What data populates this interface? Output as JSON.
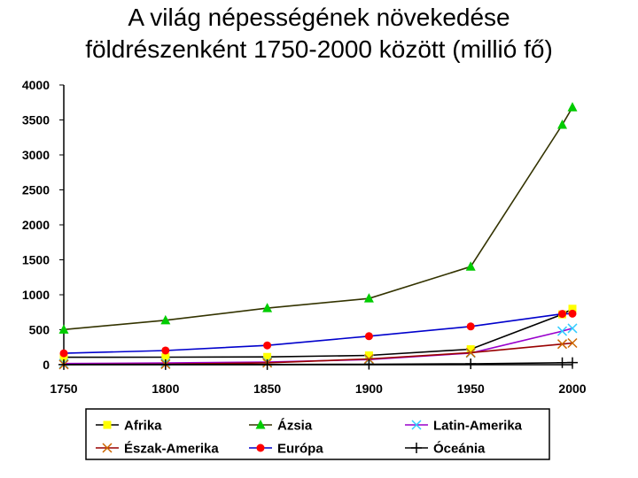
{
  "title_line1": "A világ népességének növekedése",
  "title_line2": "földrészenként 1750-2000 között (millió fő)",
  "chart_data": {
    "type": "line",
    "title": "A világ népességének növekedése földrészenként 1750-2000 között (millió fő)",
    "x_ticks": [
      1750,
      1800,
      1850,
      1900,
      1950,
      2000
    ],
    "y_ticks": [
      0,
      500,
      1000,
      1500,
      2000,
      2500,
      3000,
      3500,
      4000
    ],
    "xlim": [
      1750,
      2000
    ],
    "ylim": [
      0,
      4000
    ],
    "grid": false,
    "legend_position": "bottom",
    "series": [
      {
        "name": "Afrika",
        "color": "#ffff00",
        "marker": "square",
        "line_color": "#000000",
        "x": [
          1750,
          1800,
          1850,
          1900,
          1950,
          1995,
          2000
        ],
        "y": [
          106,
          107,
          111,
          133,
          221,
          720,
          800
        ]
      },
      {
        "name": "Ázsia",
        "color": "#00cc00",
        "marker": "triangle",
        "line_color": "#333300",
        "x": [
          1750,
          1800,
          1850,
          1900,
          1950,
          1995,
          2000
        ],
        "y": [
          502,
          635,
          809,
          947,
          1402,
          3430,
          3680
        ]
      },
      {
        "name": "Latin-Amerika",
        "color": "#33ccff",
        "marker": "x",
        "line_color": "#9900cc",
        "x": [
          1750,
          1800,
          1850,
          1900,
          1950,
          1995,
          2000
        ],
        "y": [
          16,
          24,
          38,
          74,
          166,
          480,
          520
        ]
      },
      {
        "name": "Észak-Amerika",
        "color": "#cc6600",
        "marker": "x",
        "line_color": "#990000",
        "x": [
          1750,
          1800,
          1850,
          1900,
          1950,
          1995,
          2000
        ],
        "y": [
          2,
          7,
          26,
          82,
          172,
          295,
          310
        ]
      },
      {
        "name": "Európa",
        "color": "#ff0000",
        "marker": "circle",
        "line_color": "#0000cc",
        "x": [
          1750,
          1800,
          1850,
          1900,
          1950,
          1995,
          2000
        ],
        "y": [
          163,
          203,
          276,
          408,
          547,
          727,
          730
        ]
      },
      {
        "name": "Óceánia",
        "color": "#000000",
        "marker": "plus",
        "line_color": "#000000",
        "x": [
          1750,
          1800,
          1850,
          1900,
          1950,
          1995,
          2000
        ],
        "y": [
          2,
          2,
          2,
          6,
          13,
          28,
          30
        ]
      }
    ]
  }
}
